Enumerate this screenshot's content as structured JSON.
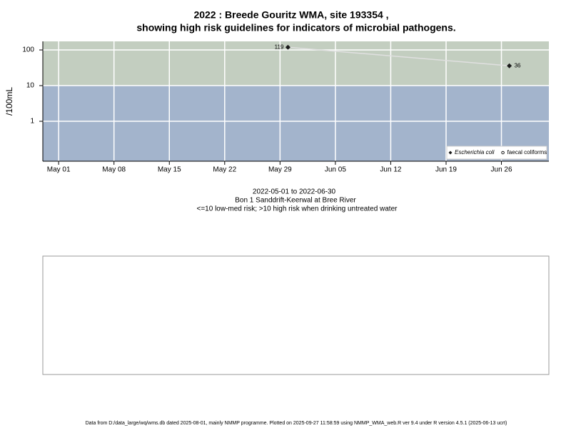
{
  "chart_data": {
    "type": "line",
    "title": [
      "2022 : Breede Gouritz WMA, site 193354 ,",
      "showing high risk guidelines for indicators of microbial pathogens."
    ],
    "subtitle": [
      "2022-05-01 to 2022-06-30",
      "Bon 1 Sanddrift-Keerwal at Bree River",
      "<=10 low-med risk; >10 high risk when drinking untreated water"
    ],
    "y_label": "/100mL",
    "x": [
      "2022-05-30",
      "2022-06-27"
    ],
    "series": [
      {
        "name": "Escherichia coli",
        "color": "#1a1a1a",
        "line_color": "#e0e0e0",
        "marker": "diamond",
        "values": [
          119,
          36
        ]
      },
      {
        "name": "faecal coliforms",
        "color": "#1a1a1a",
        "marker": "circle",
        "values": [
          null,
          null
        ]
      }
    ],
    "xlim": [
      "2022-04-29",
      "2022-07-02"
    ],
    "xticks": [
      {
        "value": "2022-05-01",
        "label": "May 01"
      },
      {
        "value": "2022-05-08",
        "label": "May 08"
      },
      {
        "value": "2022-05-15",
        "label": "May 15"
      },
      {
        "value": "2022-05-22",
        "label": "May 22"
      },
      {
        "value": "2022-05-29",
        "label": "May 29"
      },
      {
        "value": "2022-06-05",
        "label": "Jun 05"
      },
      {
        "value": "2022-06-12",
        "label": "Jun 12"
      },
      {
        "value": "2022-06-19",
        "label": "Jun 19"
      },
      {
        "value": "2022-06-26",
        "label": "Jun 26"
      }
    ],
    "ylim": [
      0.076,
      174
    ],
    "yticks": [
      1,
      10,
      100
    ],
    "log_y": true,
    "grid": true,
    "threshold": 10,
    "above_color": "#c3cec0",
    "below_color": "#a3b4cc",
    "legend": "bottom right",
    "footer": "Data from D:/data_large/wq/wms.db dated 2025-08-01, mainly NMMP programme. Plotted on 2025-09-27 11:58:59 using NMMP_WMA_web.R ver 9.4 under R version 4.5.1 (2025-06-13 ucrt)"
  }
}
